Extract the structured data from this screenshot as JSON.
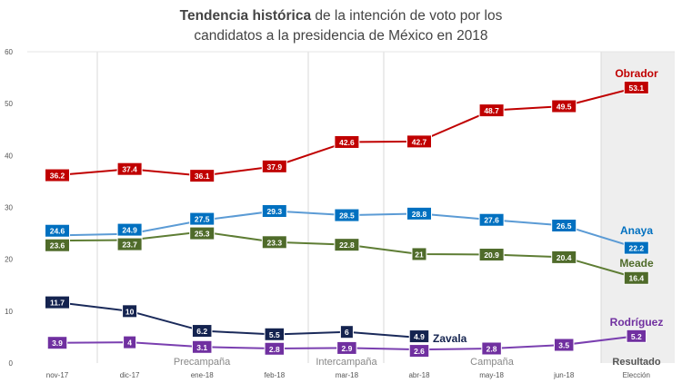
{
  "chart_data": {
    "type": "line",
    "title_bold": "Tendencia histórica",
    "title_rest_line1": " de la intención de voto por los",
    "title_line2": "candidatos a la presidencia de México en 2018",
    "categories": [
      "nov-17",
      "dic-17",
      "ene-18",
      "feb-18",
      "mar-18",
      "abr-18",
      "may-18",
      "jun-18",
      "Elección"
    ],
    "ylim": [
      0,
      60
    ],
    "yticks": [
      0,
      10,
      20,
      30,
      40,
      50,
      60
    ],
    "grid": false,
    "phases": [
      "Precampaña",
      "Intercampaña",
      "Campaña",
      "Resultado"
    ],
    "series": [
      {
        "name": "Obrador",
        "color": "#c00000",
        "line": "#c00000",
        "values": [
          36.2,
          37.4,
          36.1,
          37.9,
          42.6,
          42.7,
          48.7,
          49.5,
          53.1
        ]
      },
      {
        "name": "Anaya",
        "color": "#0070c0",
        "line": "#5b9bd5",
        "values": [
          24.6,
          24.9,
          27.5,
          29.3,
          28.5,
          28.8,
          27.6,
          26.5,
          22.2
        ]
      },
      {
        "name": "Meade",
        "color": "#4f6b2a",
        "line": "#5e7d34",
        "values": [
          23.6,
          23.7,
          25.3,
          23.3,
          22.8,
          21,
          20.9,
          20.4,
          16.4
        ]
      },
      {
        "name": "Zavala",
        "color": "#14234f",
        "line": "#1a2a5a",
        "values": [
          11.7,
          10,
          6.2,
          5.5,
          6,
          4.9,
          null,
          null,
          null
        ]
      },
      {
        "name": "Rodríguez",
        "color": "#7030a0",
        "line": "#7a3fb0",
        "values": [
          3.9,
          4,
          3.1,
          2.8,
          2.9,
          2.6,
          2.8,
          3.5,
          5.2
        ]
      }
    ]
  }
}
